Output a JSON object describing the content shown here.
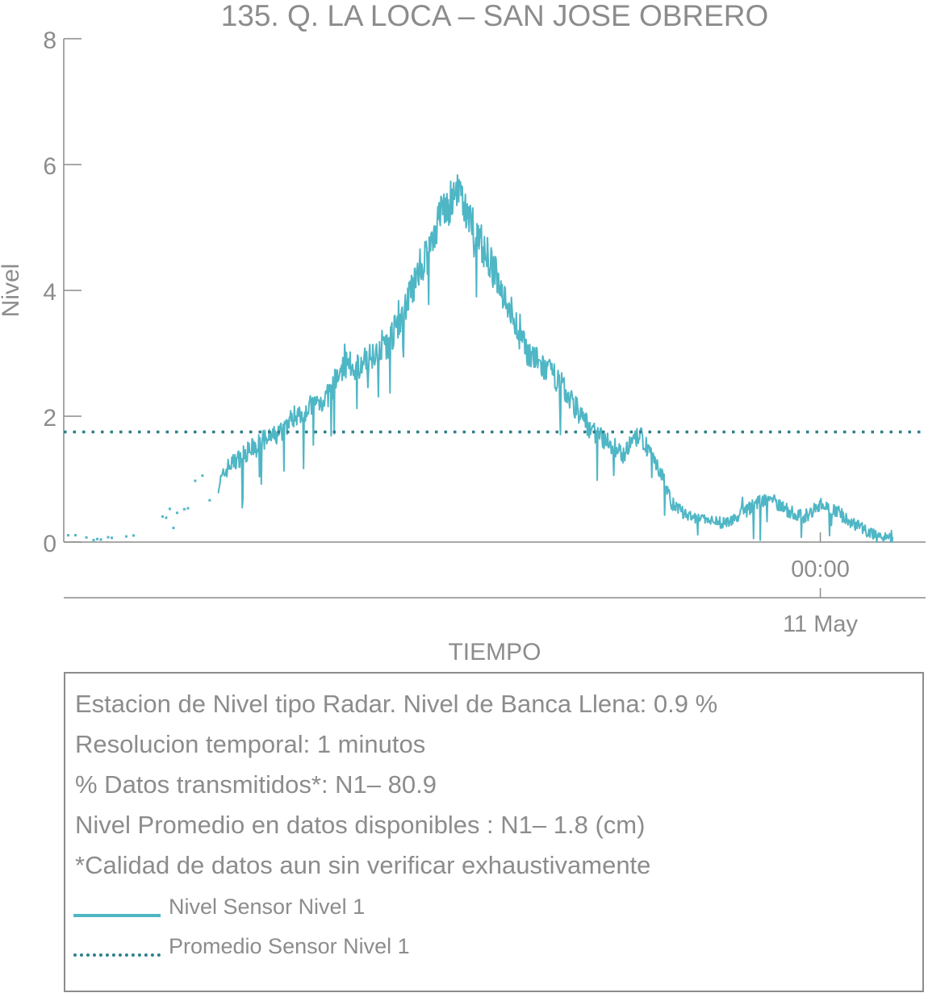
{
  "chart_data": {
    "type": "line",
    "title": "135. Q. LA LOCA – SAN JOSE OBRERO",
    "xlabel": "TIEMPO",
    "ylabel": "Nivel",
    "ylim": [
      0,
      8
    ],
    "yticks": [
      "0",
      "2",
      "4",
      "6",
      "8"
    ],
    "xticks": [
      {
        "time": "00:00",
        "date": "11 May"
      }
    ],
    "grid": false,
    "series": [
      {
        "name": "Nivel Sensor Nivel 1",
        "color": "#4fb6c5",
        "style": "solid",
        "x_hours": [
          -22.9,
          -22.0,
          -21.0,
          -20.0,
          -19.0,
          -18.3,
          -18.0,
          -17.0,
          -16.5,
          -16.0,
          -15.0,
          -14.5,
          -14.0,
          -13.0,
          -12.0,
          -11.5,
          -11.0,
          -10.5,
          -10.0,
          -9.5,
          -9.0,
          -8.5,
          -8.0,
          -7.5,
          -7.0,
          -6.5,
          -6.0,
          -5.5,
          -5.0,
          -4.5,
          -4.0,
          -3.5,
          -3.0,
          -2.5,
          -2.0,
          -1.5,
          -1.0,
          -0.5,
          0.0,
          0.5,
          1.0,
          1.5,
          2.2
        ],
        "values": [
          0.1,
          0.05,
          0.08,
          0.3,
          0.8,
          0.9,
          1.2,
          1.6,
          1.7,
          2.0,
          2.3,
          2.8,
          2.8,
          3.3,
          4.5,
          5.3,
          5.5,
          5.0,
          4.4,
          3.8,
          3.1,
          2.8,
          2.6,
          2.2,
          1.8,
          1.6,
          1.4,
          1.7,
          1.3,
          0.6,
          0.4,
          0.35,
          0.3,
          0.4,
          0.6,
          0.7,
          0.5,
          0.4,
          0.6,
          0.5,
          0.3,
          0.15,
          0.05
        ]
      },
      {
        "name": "Promedio Sensor Nivel 1",
        "color": "#2e7f8c",
        "style": "dotted",
        "value": 1.75
      }
    ]
  },
  "info": {
    "line1": "Estacion de Nivel tipo Radar. Nivel de Banca Llena:  0.9 %",
    "line2": "Resolucion temporal: 1 minutos",
    "line3": "% Datos transmitidos*: N1– 80.9",
    "line4": "Nivel Promedio en datos disponibles : N1–  1.8 (cm)",
    "line5": "*Calidad de datos aun sin verificar exhaustivamente"
  },
  "legend": {
    "items": [
      {
        "label": "Nivel Sensor Nivel 1",
        "color": "#4fb6c5",
        "style": "solid"
      },
      {
        "label": "Promedio Sensor Nivel 1",
        "color": "#2e7f8c",
        "style": "dotted"
      }
    ]
  },
  "colors": {
    "axis": "#8c8c8c",
    "text": "#8c8c8c"
  }
}
